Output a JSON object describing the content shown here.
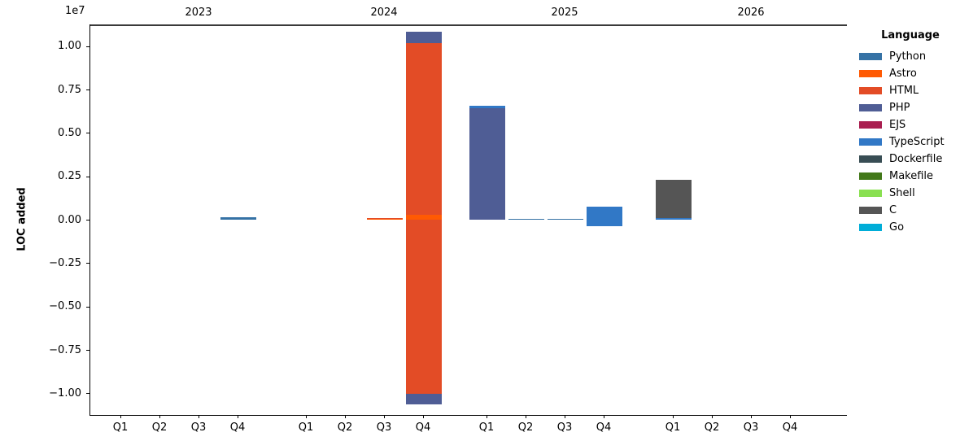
{
  "chart_data": {
    "type": "bar",
    "stacked": true,
    "title": "",
    "ylabel": "LOC added",
    "y_offset_label": "1e7",
    "ylim": [
      -11250000,
      11250000
    ],
    "grid": false,
    "legend_position": "right-outside",
    "axis_color": "#000000",
    "zero_line_color": "#3a3a3a",
    "quarters": [
      "Q1",
      "Q2",
      "Q3",
      "Q4"
    ],
    "years": [
      "2023",
      "2024",
      "2025",
      "2026"
    ],
    "yticks": [
      {
        "value": 10000000,
        "label": "1.00"
      },
      {
        "value": 7500000,
        "label": "0.75"
      },
      {
        "value": 5000000,
        "label": "0.50"
      },
      {
        "value": 2500000,
        "label": "0.25"
      },
      {
        "value": 0,
        "label": "0.00"
      },
      {
        "value": -2500000,
        "label": "−0.25"
      },
      {
        "value": -5000000,
        "label": "−0.50"
      },
      {
        "value": -7500000,
        "label": "−0.75"
      },
      {
        "value": -10000000,
        "label": "−1.00"
      }
    ],
    "legend": {
      "title": "Language",
      "entries": [
        {
          "label": "Python",
          "color": "#3572A5"
        },
        {
          "label": "Astro",
          "color": "#ff5a03"
        },
        {
          "label": "HTML",
          "color": "#e34c26"
        },
        {
          "label": "PHP",
          "color": "#4F5D95"
        },
        {
          "label": "EJS",
          "color": "#a91e50"
        },
        {
          "label": "TypeScript",
          "color": "#3178c6"
        },
        {
          "label": "Dockerfile",
          "color": "#384d54"
        },
        {
          "label": "Makefile",
          "color": "#427819"
        },
        {
          "label": "Shell",
          "color": "#89e051"
        },
        {
          "label": "C",
          "color": "#555555"
        },
        {
          "label": "Go",
          "color": "#00ADD8"
        }
      ]
    },
    "bars": [
      {
        "year": "2023",
        "quarter": "Q4",
        "segments": [
          {
            "language": "Python",
            "value": 120000
          }
        ]
      },
      {
        "year": "2024",
        "quarter": "Q3",
        "segments": [
          {
            "language": "Astro",
            "value": 40000
          },
          {
            "language": "HTML",
            "value": 55000
          }
        ]
      },
      {
        "year": "2024",
        "quarter": "Q4",
        "segments": [
          {
            "language": "Astro",
            "value": 280000
          },
          {
            "language": "HTML",
            "value": 9890000
          },
          {
            "language": "PHP",
            "value": 660000
          },
          {
            "language": "HTML",
            "value": -10030000
          },
          {
            "language": "PHP",
            "value": -610000
          }
        ]
      },
      {
        "year": "2025",
        "quarter": "Q1",
        "segments": [
          {
            "language": "PHP",
            "value": 6420000
          },
          {
            "language": "TypeScript",
            "value": 140000
          }
        ]
      },
      {
        "year": "2025",
        "quarter": "Q2",
        "segments": [
          {
            "language": "Python",
            "value": 40000
          }
        ]
      },
      {
        "year": "2025",
        "quarter": "Q3",
        "segments": [
          {
            "language": "Python",
            "value": 70000
          }
        ]
      },
      {
        "year": "2025",
        "quarter": "Q4",
        "segments": [
          {
            "language": "TypeScript",
            "value": 750000
          },
          {
            "language": "TypeScript",
            "value": -375000
          }
        ]
      },
      {
        "year": "2026",
        "quarter": "Q1",
        "segments": [
          {
            "language": "TypeScript",
            "value": 90000
          },
          {
            "language": "C",
            "value": 2210000
          }
        ]
      }
    ]
  }
}
